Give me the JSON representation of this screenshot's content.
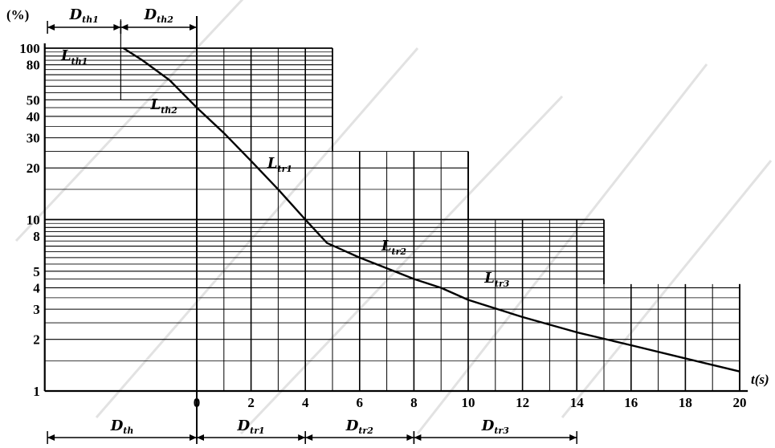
{
  "chart_data": {
    "type": "line",
    "y_unit_label": "(%)",
    "x_unit_label": "t(s)",
    "y_scale": "log",
    "ylim": [
      1,
      100
    ],
    "xlim": [
      -6,
      20
    ],
    "y_ticks": [
      "100",
      "80",
      "50",
      "40",
      "30",
      "20",
      "10",
      "8",
      "5",
      "4",
      "3",
      "2",
      "1"
    ],
    "x_ticks": [
      "0",
      "2",
      "4",
      "6",
      "8",
      "10",
      "12",
      "14",
      "16",
      "18",
      "20"
    ],
    "curve": {
      "x": [
        -2.7,
        -2.0,
        -1.0,
        0.0,
        1.0,
        2.0,
        3.0,
        4.0,
        4.8,
        6.0,
        7.0,
        8.0,
        9.0,
        10.0,
        12.0,
        14.0,
        16.0,
        18.0,
        20.0
      ],
      "y": [
        100,
        85,
        65,
        45,
        32,
        22,
        15,
        10,
        7.3,
        6.0,
        5.2,
        4.5,
        4.0,
        3.4,
        2.7,
        2.2,
        1.85,
        1.55,
        1.3
      ]
    },
    "curve_labels": [
      {
        "text": "L",
        "sub": "th1",
        "x": -5.0,
        "y": 85
      },
      {
        "text": "L",
        "sub": "th2",
        "x": -1.7,
        "y": 44
      },
      {
        "text": "L",
        "sub": "tr1",
        "x": 2.6,
        "y": 20
      },
      {
        "text": "L",
        "sub": "tr2",
        "x": 6.8,
        "y": 6.6
      },
      {
        "text": "L",
        "sub": "tr3",
        "x": 10.6,
        "y": 4.3
      }
    ],
    "top_dimensions": [
      {
        "text": "D",
        "sub": "th1",
        "x1": -5.5,
        "x2": -2.8
      },
      {
        "text": "D",
        "sub": "th2",
        "x1": -2.8,
        "x2": 0
      }
    ],
    "bottom_dimensions": [
      {
        "text": "D",
        "sub": "th",
        "x1": -5.5,
        "x2": 0
      },
      {
        "text": "D",
        "sub": "tr1",
        "x1": 0,
        "x2": 4
      },
      {
        "text": "D",
        "sub": "tr2",
        "x1": 4,
        "x2": 8
      },
      {
        "text": "D",
        "sub": "tr3",
        "x1": 8,
        "x2": 14
      }
    ],
    "grid_steps": [
      {
        "x_to": 5.0,
        "y_top": 100
      },
      {
        "x_to": 10.0,
        "y_top": 25
      },
      {
        "x_to": 15.0,
        "y_top": 10
      },
      {
        "x_to": 20.0,
        "y_top": 4.2
      }
    ]
  }
}
